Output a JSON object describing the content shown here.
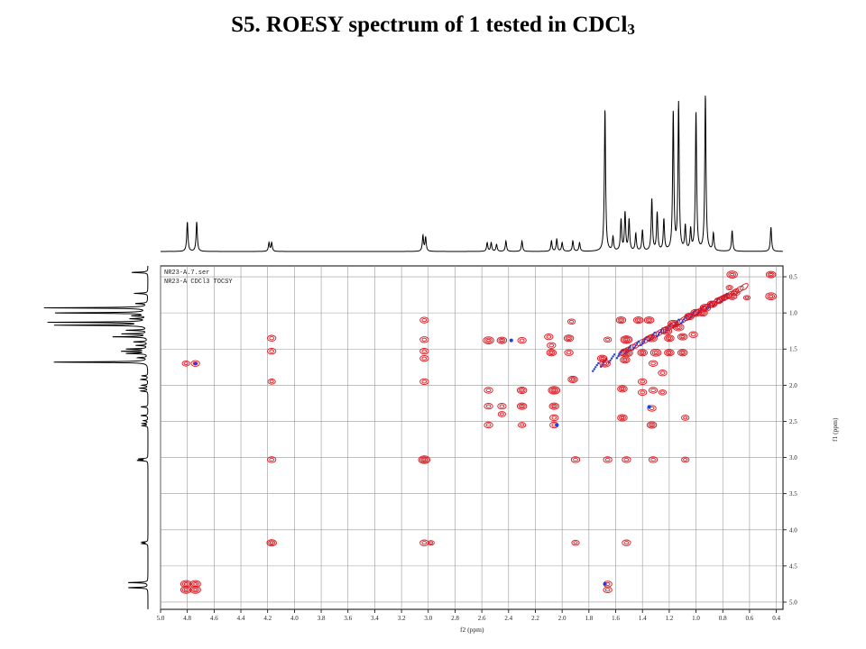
{
  "title": {
    "main": "S5. ROESY spectrum of 1 tested in CDCl",
    "subscript": "3"
  },
  "file_labels": [
    "NR23-A.7.ser",
    "NR23-A  CDCl3  TOCSY"
  ],
  "colors": {
    "positive_contour": "#d9141c",
    "negative_contour": "#1f3fe0",
    "trace": "#000000",
    "grid": "#9a9a9a"
  },
  "chart_data": {
    "type": "heatmap",
    "title": "S5. ROESY spectrum of 1 tested in CDCl3",
    "xlabel": "f2 (ppm)",
    "ylabel": "f1 (ppm)",
    "xlim": [
      5.0,
      0.35
    ],
    "ylim": [
      0.35,
      5.1
    ],
    "grid": true,
    "x_ticks": [
      "5.0",
      "4.8",
      "4.6",
      "4.4",
      "4.2",
      "4.0",
      "3.8",
      "3.6",
      "3.4",
      "3.2",
      "3.0",
      "2.8",
      "2.6",
      "2.4",
      "2.2",
      "2.0",
      "1.8",
      "1.6",
      "1.4",
      "1.2",
      "1.0",
      "0.8",
      "0.6",
      "0.4"
    ],
    "y_ticks": [
      "0.5",
      "1.0",
      "1.5",
      "2.0",
      "2.5",
      "3.0",
      "3.5",
      "4.0",
      "4.5",
      "5.0"
    ],
    "projection_peaks": [
      {
        "ppm": 4.8,
        "h": 0.17
      },
      {
        "ppm": 4.73,
        "h": 0.17
      },
      {
        "ppm": 4.19,
        "h": 0.05
      },
      {
        "ppm": 4.17,
        "h": 0.05
      },
      {
        "ppm": 3.04,
        "h": 0.09
      },
      {
        "ppm": 3.02,
        "h": 0.08
      },
      {
        "ppm": 2.56,
        "h": 0.05
      },
      {
        "ppm": 2.53,
        "h": 0.05
      },
      {
        "ppm": 2.49,
        "h": 0.04
      },
      {
        "ppm": 2.42,
        "h": 0.06
      },
      {
        "ppm": 2.3,
        "h": 0.06
      },
      {
        "ppm": 2.08,
        "h": 0.06
      },
      {
        "ppm": 2.04,
        "h": 0.07
      },
      {
        "ppm": 2.0,
        "h": 0.05
      },
      {
        "ppm": 1.92,
        "h": 0.06
      },
      {
        "ppm": 1.87,
        "h": 0.05
      },
      {
        "ppm": 1.68,
        "h": 0.82
      },
      {
        "ppm": 1.62,
        "h": 0.08
      },
      {
        "ppm": 1.56,
        "h": 0.18
      },
      {
        "ppm": 1.53,
        "h": 0.22
      },
      {
        "ppm": 1.5,
        "h": 0.18
      },
      {
        "ppm": 1.45,
        "h": 0.1
      },
      {
        "ppm": 1.4,
        "h": 0.12
      },
      {
        "ppm": 1.33,
        "h": 0.3
      },
      {
        "ppm": 1.29,
        "h": 0.22
      },
      {
        "ppm": 1.24,
        "h": 0.18
      },
      {
        "ppm": 1.17,
        "h": 0.8
      },
      {
        "ppm": 1.13,
        "h": 0.85
      },
      {
        "ppm": 1.08,
        "h": 0.14
      },
      {
        "ppm": 1.04,
        "h": 0.12
      },
      {
        "ppm": 1.0,
        "h": 0.8
      },
      {
        "ppm": 0.93,
        "h": 0.9
      },
      {
        "ppm": 0.87,
        "h": 0.1
      },
      {
        "ppm": 0.73,
        "h": 0.12
      },
      {
        "ppm": 0.44,
        "h": 0.14
      }
    ],
    "cross_peaks": [
      [
        0.73,
        0.47,
        6
      ],
      [
        0.44,
        0.47,
        5
      ],
      [
        0.73,
        0.77,
        5
      ],
      [
        0.44,
        0.77,
        6
      ],
      [
        0.62,
        0.79,
        2
      ],
      [
        0.75,
        0.65,
        2
      ],
      [
        4.81,
        1.7,
        3
      ],
      [
        4.74,
        1.7,
        4
      ],
      [
        4.81,
        4.75,
        6
      ],
      [
        4.81,
        4.83,
        6
      ],
      [
        4.74,
        4.75,
        6
      ],
      [
        4.74,
        4.83,
        6
      ],
      [
        4.17,
        1.35,
        4
      ],
      [
        4.17,
        1.53,
        4
      ],
      [
        4.17,
        1.95,
        3
      ],
      [
        4.17,
        3.03,
        4
      ],
      [
        4.17,
        4.18,
        5
      ],
      [
        3.03,
        1.1,
        4
      ],
      [
        3.03,
        1.37,
        4
      ],
      [
        3.03,
        1.53,
        4
      ],
      [
        3.03,
        1.63,
        4
      ],
      [
        3.03,
        1.95,
        4
      ],
      [
        3.03,
        3.03,
        7
      ],
      [
        3.03,
        4.18,
        4
      ],
      [
        2.98,
        4.18,
        2
      ],
      [
        2.55,
        1.38,
        6
      ],
      [
        2.55,
        2.07,
        4
      ],
      [
        2.55,
        2.29,
        4
      ],
      [
        2.55,
        2.55,
        4
      ],
      [
        2.45,
        1.38,
        5
      ],
      [
        2.45,
        2.29,
        4
      ],
      [
        2.45,
        2.4,
        3
      ],
      [
        2.3,
        1.38,
        4
      ],
      [
        2.3,
        2.07,
        5
      ],
      [
        2.3,
        2.29,
        5
      ],
      [
        2.3,
        2.55,
        3
      ],
      [
        2.1,
        1.33,
        4
      ],
      [
        2.08,
        1.45,
        4
      ],
      [
        2.08,
        1.55,
        5
      ],
      [
        2.06,
        2.07,
        7
      ],
      [
        2.06,
        2.29,
        5
      ],
      [
        2.06,
        2.45,
        4
      ],
      [
        2.06,
        2.55,
        4
      ],
      [
        1.93,
        1.12,
        3
      ],
      [
        1.95,
        1.35,
        5
      ],
      [
        1.95,
        1.55,
        4
      ],
      [
        1.92,
        1.92,
        5
      ],
      [
        1.9,
        3.03,
        4
      ],
      [
        1.9,
        4.18,
        3
      ],
      [
        1.66,
        1.37,
        3
      ],
      [
        1.68,
        1.7,
        6
      ],
      [
        1.7,
        1.63,
        5
      ],
      [
        1.66,
        3.03,
        4
      ],
      [
        1.66,
        4.75,
        4
      ],
      [
        1.66,
        4.83,
        4
      ],
      [
        1.56,
        1.1,
        5
      ],
      [
        1.52,
        1.37,
        7
      ],
      [
        1.52,
        1.55,
        8
      ],
      [
        1.53,
        1.65,
        5
      ],
      [
        1.55,
        2.05,
        5
      ],
      [
        1.55,
        2.45,
        5
      ],
      [
        1.52,
        3.03,
        4
      ],
      [
        1.52,
        4.18,
        4
      ],
      [
        1.43,
        1.1,
        5
      ],
      [
        1.4,
        1.55,
        5
      ],
      [
        1.4,
        1.95,
        4
      ],
      [
        1.4,
        2.1,
        4
      ],
      [
        1.35,
        1.1,
        5
      ],
      [
        1.33,
        1.35,
        6
      ],
      [
        1.3,
        1.55,
        6
      ],
      [
        1.32,
        1.7,
        4
      ],
      [
        1.32,
        2.07,
        4
      ],
      [
        1.33,
        2.32,
        4
      ],
      [
        1.33,
        2.55,
        5
      ],
      [
        1.32,
        3.03,
        4
      ],
      [
        1.22,
        1.25,
        6
      ],
      [
        1.2,
        1.35,
        5
      ],
      [
        1.2,
        1.55,
        5
      ],
      [
        1.25,
        1.83,
        4
      ],
      [
        1.25,
        2.1,
        3
      ],
      [
        1.17,
        1.15,
        6
      ],
      [
        1.13,
        1.2,
        6
      ],
      [
        1.1,
        1.33,
        5
      ],
      [
        1.1,
        1.55,
        5
      ],
      [
        1.08,
        2.45,
        3
      ],
      [
        1.08,
        3.03,
        3
      ],
      [
        1.05,
        1.05,
        5
      ],
      [
        1.0,
        1.0,
        6
      ],
      [
        1.02,
        1.3,
        4
      ],
      [
        0.95,
        1.0,
        5
      ],
      [
        0.93,
        0.93,
        6
      ],
      [
        0.88,
        0.88,
        5
      ],
      [
        0.83,
        0.83,
        4
      ],
      [
        0.8,
        0.8,
        3
      ],
      [
        0.78,
        0.78,
        3
      ],
      [
        0.7,
        0.72,
        3
      ]
    ]
  }
}
